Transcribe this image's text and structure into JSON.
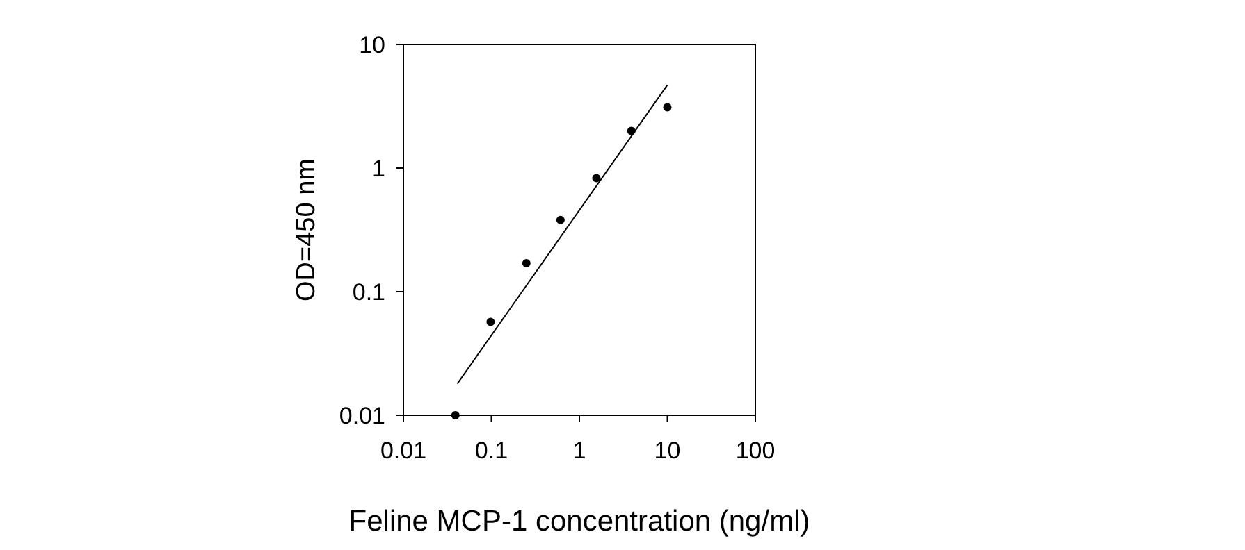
{
  "chart_data": {
    "type": "scatter",
    "xlabel": "Feline MCP-1 concentration (ng/ml)",
    "ylabel": "OD=450 nm",
    "log": "xy",
    "grid": false,
    "marker": "circle",
    "xlim": [
      0.01,
      100
    ],
    "xticks": [
      0.01,
      0.1,
      1,
      10,
      100
    ],
    "ylim": [
      0.01,
      10
    ],
    "yticks": [
      0.01,
      0.1,
      1,
      10
    ],
    "series": [
      {
        "color": "#000000",
        "x": [
          0.039,
          0.098,
          0.25,
          0.61,
          1.56,
          3.9,
          10
        ],
        "values": [
          0.01,
          0.057,
          0.17,
          0.38,
          0.83,
          2.0,
          3.1
        ]
      },
      {
        "type": "line",
        "color": "#000000",
        "marker": "none",
        "line_style": "solid",
        "x": [
          0.041,
          10
        ],
        "values": [
          0.018,
          4.7
        ]
      }
    ]
  }
}
